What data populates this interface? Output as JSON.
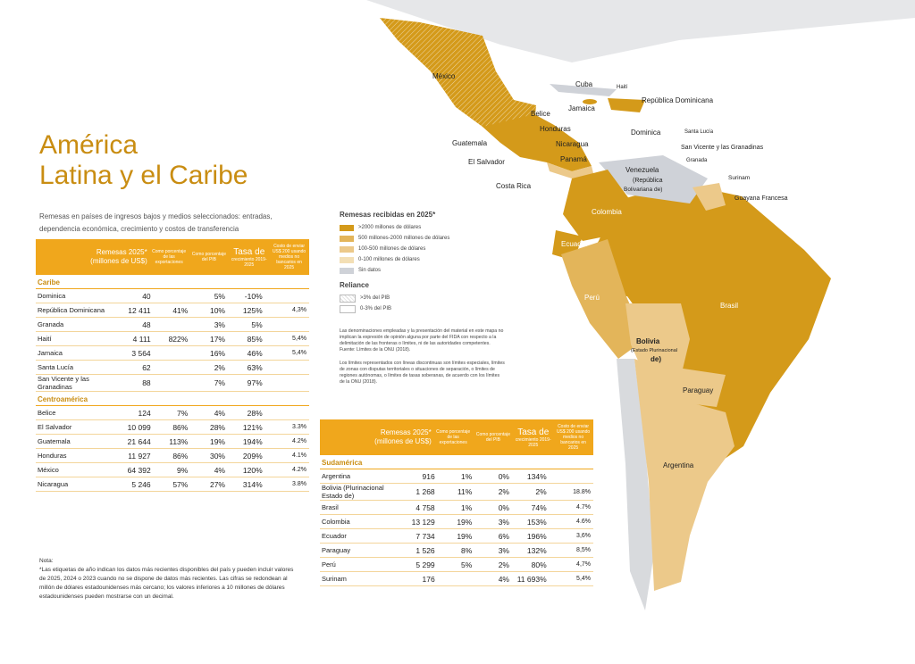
{
  "title": [
    "América",
    "Latina y el Caribe"
  ],
  "left_table": {
    "caption": "Remesas en países de ingresos bajos y medios seleccionados: entradas, dependencia económica, crecimiento y costos de transferencia",
    "headers": {
      "remesas": "Remesas 2025* (millones de US$)",
      "pct_exports": "Como porcentaje de las exportaciones",
      "pct_gdp": "Como porcentaje del PIB",
      "growth": {
        "main": "Tasa de",
        "sub": "crecimiento 2019-2025"
      },
      "cost": "Costo de enviar US$ 200 usando medios no bancarios en 2025"
    },
    "sections": [
      {
        "name": "Caribe",
        "rows": [
          {
            "name": "Dominica",
            "remesas": "40",
            "pct_gdp": "5%",
            "growth": "-10%"
          },
          {
            "name": "República Dominicana",
            "remesas": "12 411",
            "pct_exports": "41%",
            "pct_gdp": "10%",
            "growth": "125%",
            "cost": "4,3%"
          },
          {
            "name": "Granada",
            "remesas": "48",
            "pct_gdp": "3%",
            "growth": "5%"
          },
          {
            "name": "Haití",
            "remesas": "4 111",
            "pct_exports": "822%",
            "pct_gdp": "17%",
            "growth": "85%",
            "cost": "5,4%"
          },
          {
            "name": "Jamaica",
            "remesas": "3 564",
            "pct_gdp": "16%",
            "growth": "46%",
            "cost": "5,4%"
          },
          {
            "name": "Santa Lucía",
            "remesas": "62",
            "pct_gdp": "2%",
            "growth": "63%"
          },
          {
            "name": "San Vicente y las Granadinas",
            "remesas": "88",
            "pct_gdp": "7%",
            "growth": "97%"
          }
        ]
      },
      {
        "name": "Centroamérica",
        "rows": [
          {
            "name": "Belice",
            "remesas": "124",
            "pct_exports": "7%",
            "pct_gdp": "4%",
            "growth": "28%"
          },
          {
            "name": "El Salvador",
            "remesas": "10 099",
            "pct_exports": "86%",
            "pct_gdp": "28%",
            "growth": "121%",
            "cost": "3.3%"
          },
          {
            "name": "Guatemala",
            "remesas": "21 644",
            "pct_exports": "113%",
            "pct_gdp": "19%",
            "growth": "194%",
            "cost": "4.2%"
          },
          {
            "name": "Honduras",
            "remesas": "11 927",
            "pct_exports": "86%",
            "pct_gdp": "30%",
            "growth": "209%",
            "cost": "4.1%"
          },
          {
            "name": "México",
            "remesas": "64 392",
            "pct_exports": "9%",
            "pct_gdp": "4%",
            "growth": "120%",
            "cost": "4.2%"
          },
          {
            "name": "Nicaragua",
            "remesas": "5 246",
            "pct_exports": "57%",
            "pct_gdp": "27%",
            "growth": "314%",
            "cost": "3.8%"
          }
        ]
      }
    ]
  },
  "right_table": {
    "headers": {
      "remesas": "Remesas 2025* (millones de US$)",
      "pct_exports": "Como porcentaje de las exportaciones",
      "pct_gdp": "Como porcentaje del PIB",
      "growth": {
        "main": "Tasa de",
        "sub": "crecimiento 2019-2025"
      },
      "cost": "Costo de enviar US$ 200 usando medios no bancarios en 2025"
    },
    "sections": [
      {
        "name": "Sudamérica",
        "rows": [
          {
            "name": "Argentina",
            "remesas": "916",
            "pct_exports": "1%",
            "pct_gdp": "0%",
            "growth": "134%"
          },
          {
            "name": "Bolivia (Plurinacional Estado de)",
            "remesas": "1 268",
            "pct_exports": "11%",
            "pct_gdp": "2%",
            "growth": "2%",
            "cost": "18.8%"
          },
          {
            "name": "Brasil",
            "remesas": "4 758",
            "pct_exports": "1%",
            "pct_gdp": "0%",
            "growth": "74%",
            "cost": "4.7%"
          },
          {
            "name": "Colombia",
            "remesas": "13 129",
            "pct_exports": "19%",
            "pct_gdp": "3%",
            "growth": "153%",
            "cost": "4.6%"
          },
          {
            "name": "Ecuador",
            "remesas": "7 734",
            "pct_exports": "19%",
            "pct_gdp": "6%",
            "growth": "196%",
            "cost": "3,6%"
          },
          {
            "name": "Paraguay",
            "remesas": "1 526",
            "pct_exports": "8%",
            "pct_gdp": "3%",
            "growth": "132%",
            "cost": "8,5%"
          },
          {
            "name": "Perú",
            "remesas": "5 299",
            "pct_exports": "5%",
            "pct_gdp": "2%",
            "growth": "80%",
            "cost": "4,7%"
          },
          {
            "name": "Surinam",
            "remesas": "176",
            "pct_gdp": "4%",
            "growth": "11 693%",
            "cost": "5,4%"
          }
        ]
      }
    ]
  },
  "legend": {
    "title": "Remesas recibidas en 2025*",
    "items": [
      ">2000 millones de dólares",
      "500 millones-2000 millones de dólares",
      "100-500 millones de dólares",
      "0-100 millones de dólares",
      "Sin datos"
    ],
    "reliance_title": "Reliance",
    "reliance_items": [
      ">3% del PIB",
      "0-3% del PIB"
    ]
  },
  "disclaimer": [
    "Las denominaciones empleadas y la presentación del material en este mapa no implican la expresión de opinión alguna por parte del FIDA con respecto a la delimitación de las fronteras o límites, ni de las autoridades competentes. Fuente: Límites de la ONU (2018).",
    "Los límites representados con líneas discontinuas son límites especiales, límites de zonas con disputas territoriales o situaciones de separación, o límites de regiones autónomas, o límites de tasas soberanas, de acuerdo con los límites de la ONU (2018)."
  ],
  "note": {
    "title": "Nota:",
    "text": "*Las etiquetas de año indican los datos más recientes disponibles del país y pueden incluir valores de 2025, 2024 o 2023 cuando no se dispone de datos más recientes. Las cifras se redondean al millón de dólares estadounidenses más cercano; los valores inferiores a 10 millones de dólares estadounidenses pueden mostrarse con un decimal."
  },
  "map_labels": [
    "México",
    "Cuba",
    "Haití",
    "República Dominicana",
    "Belice",
    "Jamaica",
    "Honduras",
    "Dominica",
    "Santa Lucía",
    "San Vicente y las Granadinas",
    "Granada",
    "Guatemala",
    "Nicaragua",
    "El Salvador",
    "Panamá",
    "Venezuela",
    "(República",
    "Bolivariana de)",
    "Surinam",
    "Guayana Francesa",
    "Costa Rica",
    "Colombia",
    "Ecuador",
    "Perú",
    "Brasil",
    "Bolivia",
    "(Estado Plurinacional",
    "de)",
    "Paraguay",
    "Argentina"
  ]
}
